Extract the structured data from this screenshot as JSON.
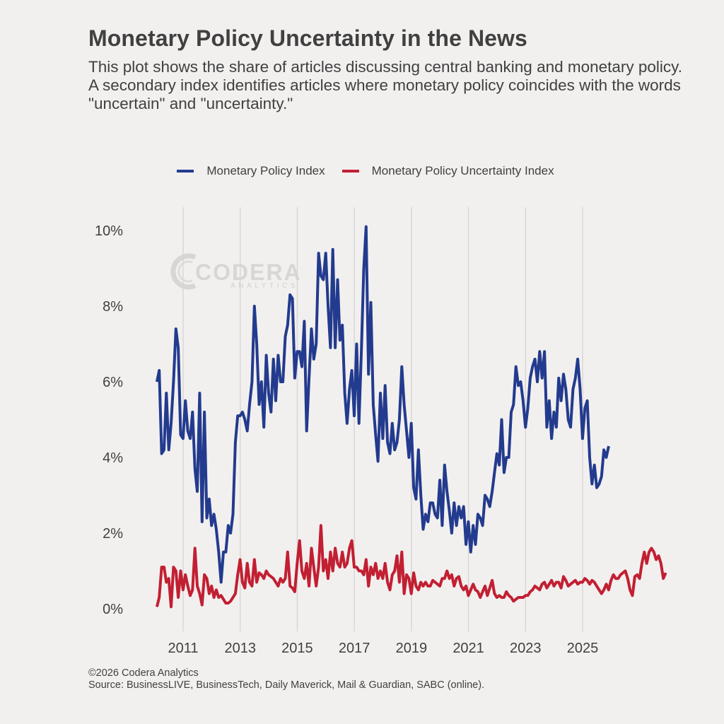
{
  "title": "Monetary Policy Uncertainty in the News",
  "subtitle": "This plot shows the share of articles discussing central banking and monetary policy. A secondary index identifies articles where monetary policy coincides with the words \"uncertain\" and \"uncertainty.\"",
  "footer": {
    "copyright": "©2026 Codera Analytics",
    "source": "Source: BusinessLIVE, BusinessTech, Daily Maverick, Mail & Guardian, SABC (online)."
  },
  "watermark": {
    "main": "CODERA",
    "sub": "ANALYTICS"
  },
  "chart_data": {
    "type": "line",
    "title": "Monetary Policy Uncertainty in the News",
    "xlabel": "",
    "ylabel": "",
    "ylim": [
      0,
      10
    ],
    "xlim": [
      2010.0,
      2026.0
    ],
    "grid": "vertical",
    "legend_position": "top",
    "y_ticks": [
      "0%",
      "2%",
      "4%",
      "6%",
      "8%",
      "10%"
    ],
    "y_tick_values": [
      0,
      2,
      4,
      6,
      8,
      10
    ],
    "x_ticks": [
      "2011",
      "2013",
      "2015",
      "2017",
      "2019",
      "2021",
      "2023",
      "2025"
    ],
    "x_tick_values": [
      2011,
      2013,
      2015,
      2017,
      2019,
      2021,
      2023,
      2025
    ],
    "x_start": 2010.08,
    "x_step_months": 1,
    "series": [
      {
        "name": "Monetary Policy Index",
        "color": "#233b8e",
        "values": [
          6.0,
          6.3,
          4.1,
          4.2,
          5.7,
          4.2,
          4.9,
          6.0,
          7.4,
          6.9,
          4.6,
          4.5,
          5.5,
          4.7,
          4.5,
          5.2,
          3.7,
          3.1,
          5.7,
          2.3,
          5.2,
          2.4,
          2.9,
          2.2,
          2.5,
          2.1,
          1.5,
          0.7,
          1.5,
          1.5,
          2.2,
          2.0,
          2.5,
          4.4,
          5.1,
          5.1,
          5.2,
          5.0,
          4.7,
          5.4,
          6.0,
          8.0,
          7.0,
          5.4,
          6.0,
          4.8,
          6.7,
          5.7,
          5.2,
          6.6,
          5.5,
          6.7,
          6.0,
          6.0,
          7.2,
          7.5,
          8.3,
          8.2,
          6.1,
          6.8,
          6.8,
          6.4,
          7.6,
          4.7,
          6.1,
          7.4,
          6.6,
          7.0,
          9.4,
          8.8,
          8.7,
          9.4,
          8.0,
          6.9,
          9.5,
          6.9,
          8.7,
          7.1,
          7.5,
          5.7,
          4.9,
          5.8,
          6.3,
          5.1,
          7.0,
          4.9,
          6.8,
          9.0,
          10.1,
          6.2,
          8.1,
          5.4,
          4.6,
          3.9,
          5.7,
          4.5,
          5.9,
          4.4,
          4.1,
          4.9,
          4.2,
          4.4,
          5.0,
          6.4,
          5.4,
          4.7,
          4.0,
          4.9,
          3.2,
          2.9,
          4.2,
          3.0,
          2.1,
          2.5,
          2.3,
          2.8,
          2.8,
          2.5,
          2.4,
          3.4,
          2.2,
          3.8,
          3.1,
          2.6,
          2.0,
          2.8,
          2.2,
          2.7,
          2.4,
          2.7,
          1.7,
          2.3,
          1.5,
          2.2,
          1.7,
          2.5,
          2.4,
          2.2,
          3.0,
          2.9,
          2.7,
          3.1,
          3.6,
          4.1,
          3.8,
          5.0,
          3.6,
          4.0,
          4.0,
          5.2,
          5.4,
          6.4,
          5.9,
          6.0,
          5.5,
          4.8,
          5.3,
          6.1,
          6.4,
          6.6,
          6.0,
          6.8,
          6.1,
          6.8,
          4.8,
          5.5,
          4.5,
          5.2,
          4.8,
          6.1,
          5.5,
          6.2,
          5.8,
          5.0,
          4.8,
          5.8,
          6.1,
          6.6,
          5.8,
          4.5,
          5.3,
          5.5,
          4.0,
          3.3,
          3.8,
          3.2,
          3.3,
          3.5,
          4.2,
          4.0,
          4.3
        ]
      },
      {
        "name": "Monetary Policy Uncertainty Index",
        "color": "#c21f32",
        "values": [
          0.05,
          0.3,
          1.1,
          1.1,
          0.7,
          0.8,
          0.05,
          1.1,
          1.0,
          0.3,
          1.0,
          0.5,
          0.9,
          0.6,
          0.35,
          0.5,
          1.6,
          0.6,
          0.4,
          0.1,
          0.9,
          0.8,
          0.4,
          0.6,
          0.3,
          0.5,
          0.3,
          0.35,
          0.25,
          0.15,
          0.15,
          0.2,
          0.3,
          0.4,
          0.9,
          1.3,
          0.7,
          0.55,
          1.2,
          0.7,
          0.6,
          1.3,
          0.7,
          0.95,
          0.9,
          0.8,
          1.0,
          0.9,
          0.85,
          0.8,
          0.7,
          0.6,
          0.8,
          0.7,
          0.8,
          1.5,
          0.6,
          0.55,
          0.45,
          1.2,
          1.8,
          1.0,
          0.8,
          1.2,
          0.6,
          1.6,
          1.1,
          0.6,
          1.1,
          2.2,
          1.0,
          1.3,
          0.8,
          1.5,
          1.0,
          1.6,
          1.2,
          1.1,
          1.5,
          1.1,
          1.2,
          1.6,
          1.8,
          1.1,
          1.1,
          1.0,
          1.0,
          0.9,
          1.3,
          0.6,
          1.1,
          0.9,
          1.2,
          0.8,
          1.0,
          0.8,
          1.2,
          0.7,
          0.5,
          0.9,
          1.0,
          1.4,
          0.7,
          1.5,
          0.4,
          0.9,
          0.8,
          0.4,
          0.95,
          0.6,
          0.5,
          0.7,
          0.6,
          0.7,
          0.6,
          0.6,
          0.75,
          0.7,
          0.65,
          0.6,
          0.8,
          0.8,
          1.0,
          0.8,
          0.9,
          0.6,
          0.8,
          0.85,
          0.6,
          0.5,
          0.6,
          0.35,
          0.5,
          0.65,
          0.5,
          0.45,
          0.3,
          0.45,
          0.6,
          0.35,
          0.55,
          0.75,
          0.4,
          0.3,
          0.35,
          0.3,
          0.3,
          0.45,
          0.35,
          0.3,
          0.2,
          0.25,
          0.3,
          0.3,
          0.3,
          0.35,
          0.35,
          0.45,
          0.5,
          0.6,
          0.55,
          0.5,
          0.65,
          0.7,
          0.55,
          0.65,
          0.75,
          0.6,
          0.7,
          0.7,
          0.55,
          0.85,
          0.75,
          0.6,
          0.65,
          0.7,
          0.75,
          0.65,
          0.7,
          0.7,
          0.8,
          0.75,
          0.65,
          0.75,
          0.7,
          0.6,
          0.5,
          0.4,
          0.5,
          0.65,
          0.5,
          0.75,
          0.9,
          0.8,
          0.8,
          0.9,
          0.95,
          1.0,
          0.8,
          0.5,
          0.35,
          0.85,
          0.9,
          0.8,
          1.2,
          1.5,
          1.2,
          1.5,
          1.6,
          1.5,
          1.3,
          1.4,
          1.2,
          0.8,
          0.95
        ]
      }
    ]
  }
}
